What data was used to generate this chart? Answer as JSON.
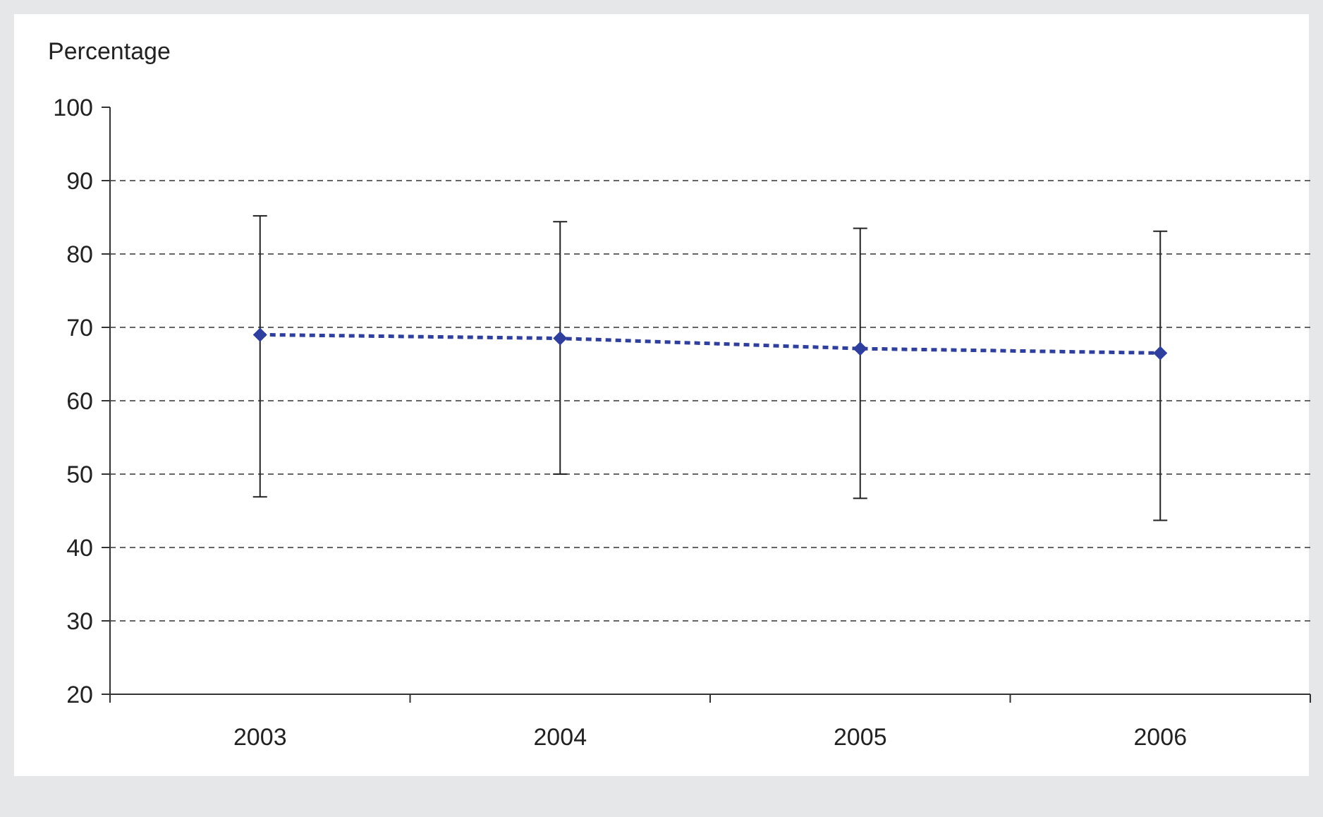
{
  "chart_data": {
    "type": "line",
    "ylabel": "Percentage",
    "categories": [
      "2003",
      "2004",
      "2005",
      "2006"
    ],
    "series": [
      {
        "color": "#2e3f9e",
        "values": [
          69.0,
          68.5,
          67.1,
          66.5
        ],
        "errors": [
          [
            46.9,
            85.2
          ],
          [
            50.0,
            84.4
          ],
          [
            46.7,
            83.5
          ],
          [
            43.7,
            83.1
          ]
        ]
      }
    ],
    "ylim": [
      20,
      100
    ],
    "yticks": [
      20,
      30,
      40,
      50,
      60,
      70,
      80,
      90,
      100
    ],
    "grid": "y",
    "marker": "diamond",
    "line_style": "dashed"
  }
}
